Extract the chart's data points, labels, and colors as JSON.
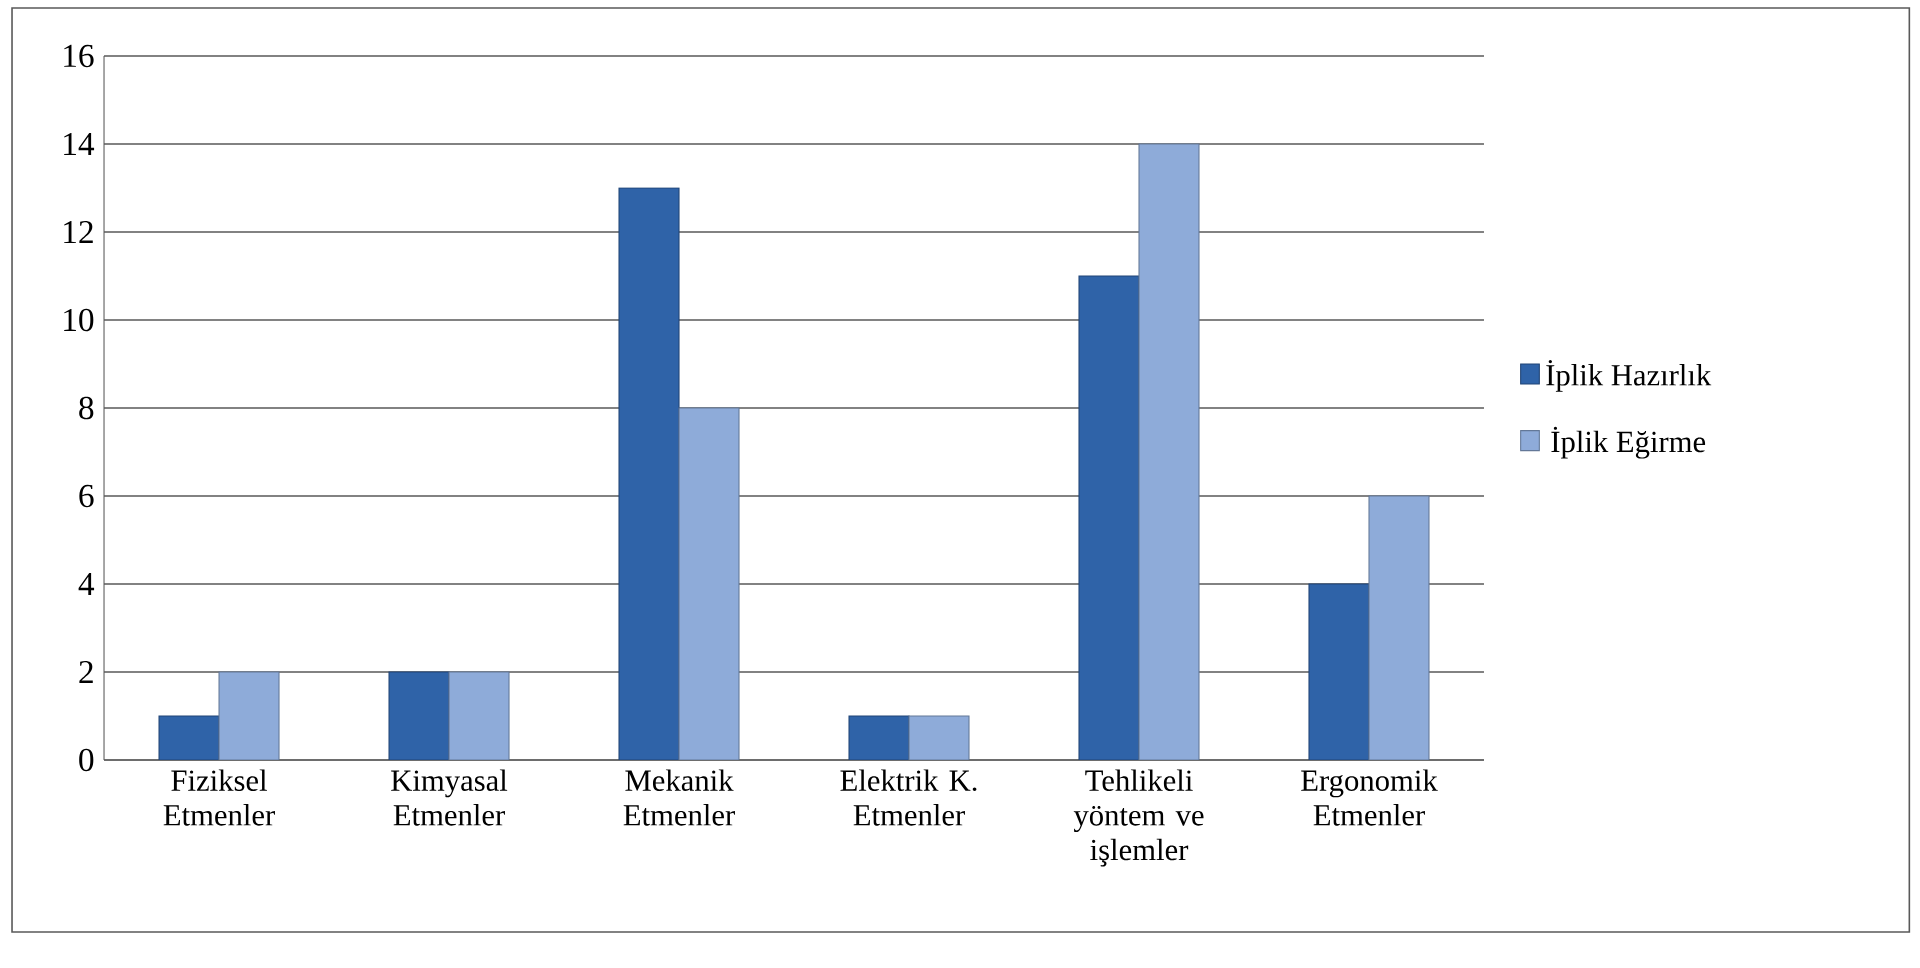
{
  "chart_data": {
    "type": "bar",
    "categories": [
      "Fiziksel Etmenler",
      "Kimyasal Etmenler",
      "Mekanik Etmenler",
      "Elektrik K. Etmenler",
      "Tehlikeli yöntem ve işlemler",
      "Ergonomik Etmenler"
    ],
    "series": [
      {
        "name": "İplik Hazırlık",
        "color": "#2f63a8",
        "values": [
          1,
          2,
          13,
          1,
          11,
          4
        ]
      },
      {
        "name": "İplik Eğirme",
        "color": "#8eabd9",
        "values": [
          2,
          2,
          8,
          1,
          14,
          6
        ]
      }
    ],
    "ylim": [
      0,
      16
    ],
    "yticks": [
      0,
      2,
      4,
      6,
      8,
      10,
      12,
      14,
      16
    ],
    "grid": "y",
    "legend": "right"
  }
}
